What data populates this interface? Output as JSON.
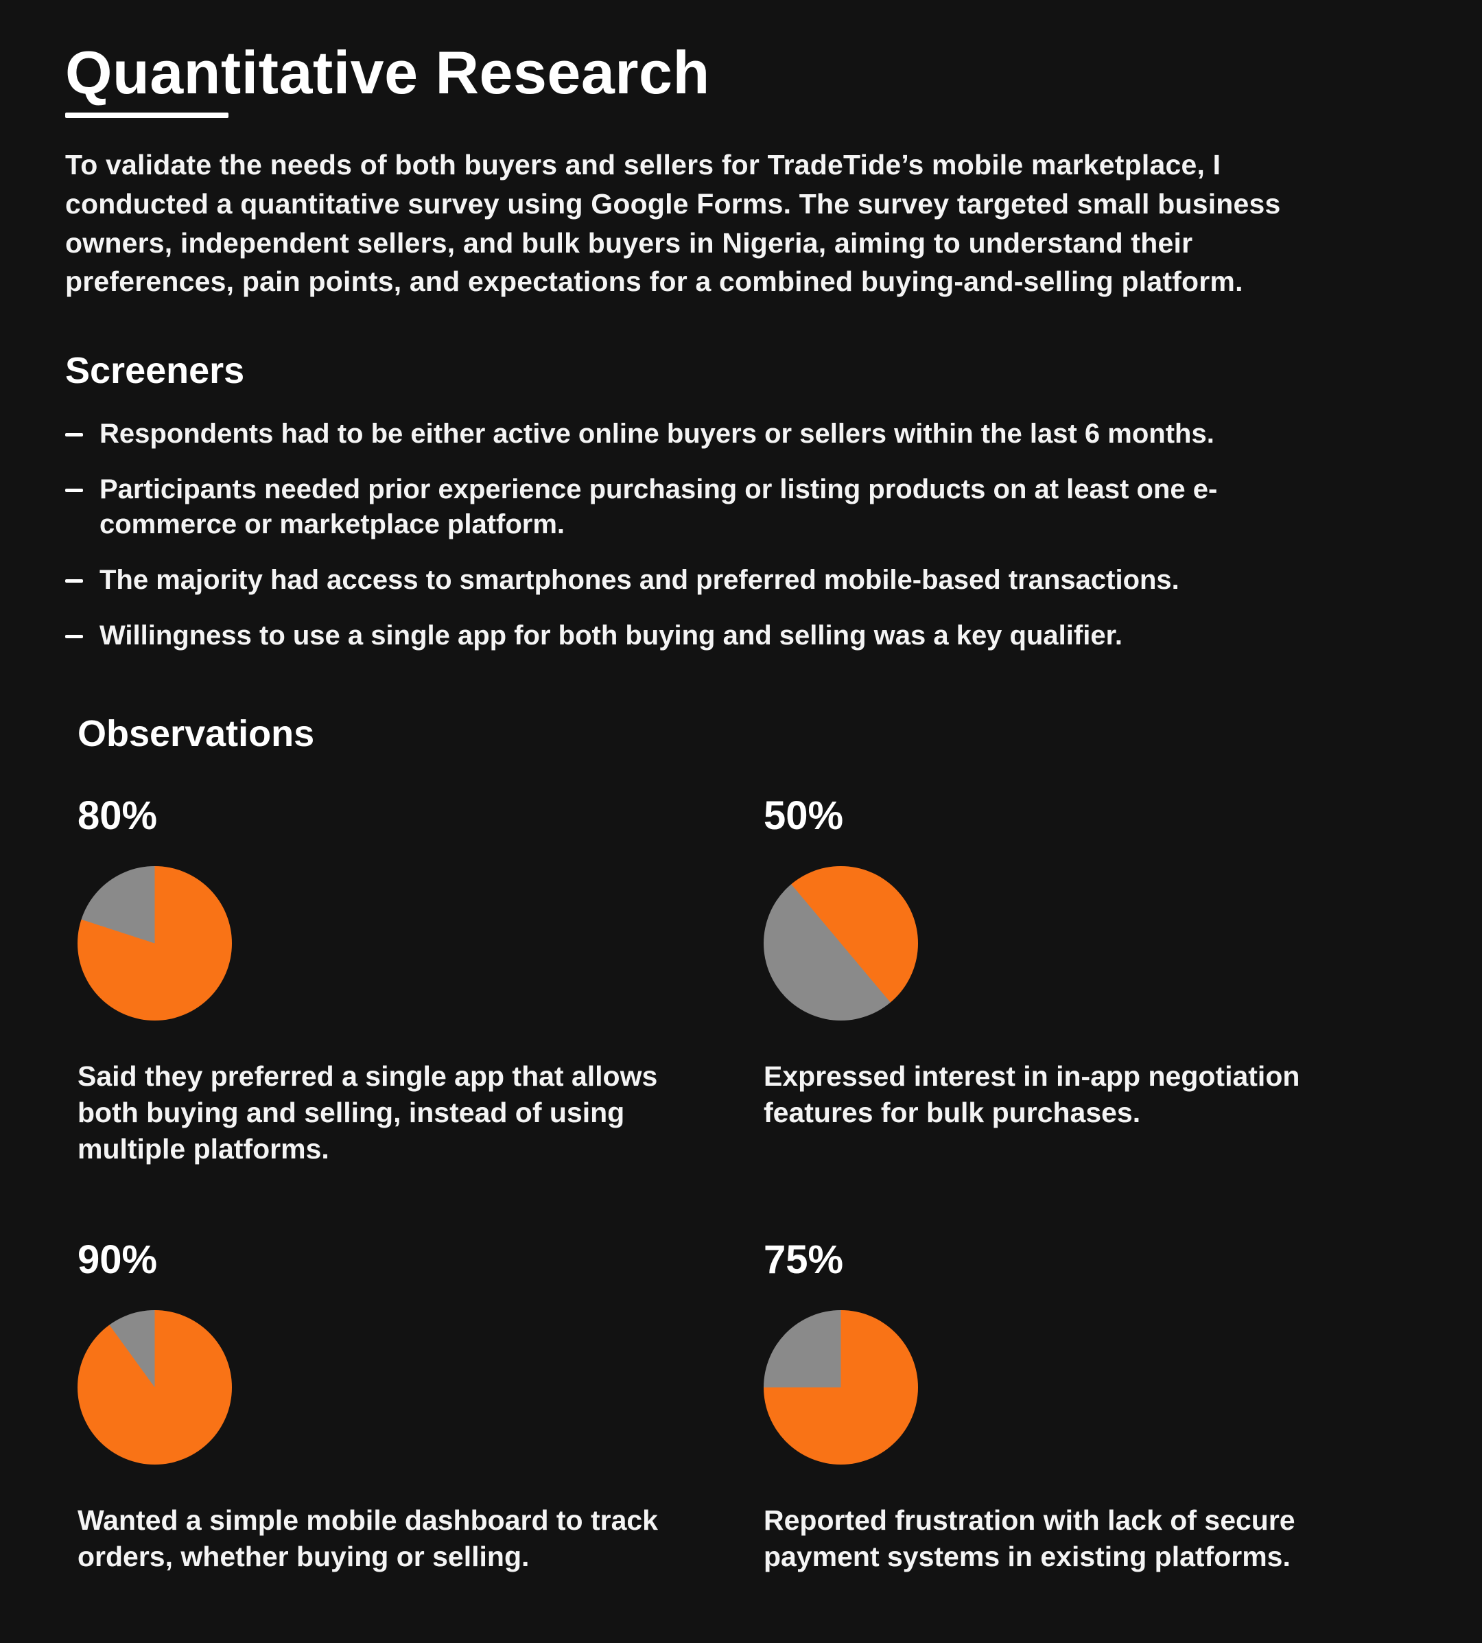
{
  "page": {
    "title": "Quantitative Research",
    "intro": "To validate the needs of both buyers and sellers for TradeTide’s mobile marketplace, I conducted a quantitative survey using Google Forms. The survey targeted small business owners, independent sellers, and bulk buyers in Nigeria, aiming to understand their preferences, pain points, and expectations for a combined buying-and-selling platform."
  },
  "screeners": {
    "heading": "Screeners",
    "items": [
      "Respondents had to be either active online buyers or sellers within the last 6 months.",
      "Participants needed prior experience purchasing or listing products on at least one e-commerce or marketplace platform.",
      "The majority had access to smartphones and preferred mobile-based transactions.",
      "Willingness to use a single app for both buying and selling was a key qualifier."
    ]
  },
  "observations": {
    "heading": "Observations",
    "items": [
      {
        "percent": "80%",
        "value": 80,
        "start_deg": 0,
        "caption": "Said they preferred a single app that allows both buying and selling, instead of using multiple platforms."
      },
      {
        "percent": "50%",
        "value": 50,
        "start_deg": -40,
        "caption": "Expressed interest in in-app negotiation features for bulk purchases."
      },
      {
        "percent": "90%",
        "value": 90,
        "start_deg": 0,
        "caption": "Wanted a simple mobile dashboard to track orders, whether buying or selling."
      },
      {
        "percent": "75%",
        "value": 75,
        "start_deg": 0,
        "caption": "Reported frustration with lack of secure payment systems in existing platforms."
      }
    ]
  },
  "colors": {
    "background": "#121212",
    "text": "#FAFAFA",
    "accent_orange": "#F97316",
    "pie_gray": "#8A8A8A"
  },
  "chart_data": [
    {
      "type": "pie",
      "title": "80%",
      "values": [
        80,
        20
      ],
      "colors": [
        "#F97316",
        "#8A8A8A"
      ],
      "annotation": "Said they preferred a single app that allows both buying and selling, instead of using multiple platforms.",
      "legend_position": "none"
    },
    {
      "type": "pie",
      "title": "50%",
      "values": [
        50,
        50
      ],
      "colors": [
        "#F97316",
        "#8A8A8A"
      ],
      "annotation": "Expressed interest in in-app negotiation features for bulk purchases.",
      "legend_position": "none"
    },
    {
      "type": "pie",
      "title": "90%",
      "values": [
        90,
        10
      ],
      "colors": [
        "#F97316",
        "#8A8A8A"
      ],
      "annotation": "Wanted a simple mobile dashboard to track orders, whether buying or selling.",
      "legend_position": "none"
    },
    {
      "type": "pie",
      "title": "75%",
      "values": [
        75,
        25
      ],
      "colors": [
        "#F97316",
        "#8A8A8A"
      ],
      "annotation": "Reported frustration with lack of secure payment systems in existing platforms.",
      "legend_position": "none"
    }
  ]
}
